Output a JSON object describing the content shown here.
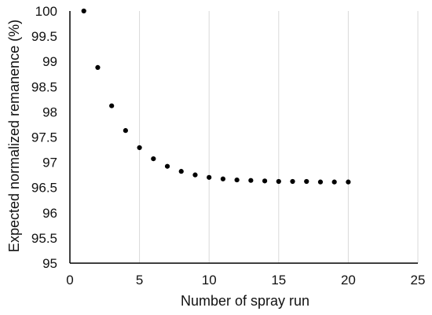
{
  "chart_data": {
    "type": "scatter",
    "title": "",
    "xlabel": "Number of spray run",
    "ylabel": "Expected normalized remanence (%)",
    "xlim": [
      0,
      25
    ],
    "ylim": [
      95,
      100
    ],
    "x_ticks": [
      0,
      5,
      10,
      15,
      20,
      25
    ],
    "y_ticks": [
      95,
      95.5,
      96,
      96.5,
      97,
      97.5,
      98,
      98.5,
      99,
      99.5,
      100
    ],
    "x_tick_labels": [
      "0",
      "5",
      "10",
      "15",
      "20",
      "25"
    ],
    "y_tick_labels": [
      "95",
      "95.5",
      "96",
      "96.5",
      "97",
      "97.5",
      "98",
      "98.5",
      "99",
      "99.5",
      "100"
    ],
    "grid": "vertical",
    "legend": "none",
    "series": [
      {
        "x": [
          1,
          2,
          3,
          4,
          5,
          6,
          7,
          8,
          9,
          10,
          11,
          12,
          13,
          14,
          15,
          16,
          17,
          18,
          19,
          20
        ],
        "y": [
          100,
          98.88,
          98.12,
          97.63,
          97.29,
          97.07,
          96.92,
          96.82,
          96.75,
          96.7,
          96.67,
          96.65,
          96.64,
          96.63,
          96.62,
          96.62,
          96.62,
          96.61,
          96.61,
          96.61
        ],
        "color": "#000000"
      }
    ],
    "colors": {
      "gridline": "#d9d9d9",
      "axis": "#000000",
      "marker": "#000000"
    }
  }
}
